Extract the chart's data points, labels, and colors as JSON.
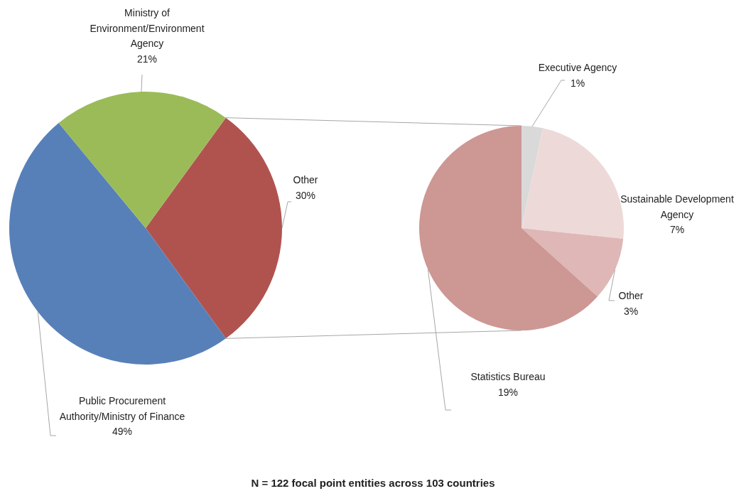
{
  "chart_data": [
    {
      "type": "pie",
      "categories": [
        "Other",
        "Public Procurement Authority/Ministry of Finance",
        "Ministry of Environment/Environment Agency"
      ],
      "values": [
        30,
        49,
        21
      ],
      "colors": [
        "#b0534f",
        "#5880b8",
        "#9bbb59"
      ],
      "value_labels": [
        "30%",
        "49%",
        "21%"
      ],
      "annotations": [
        "N = 122 focal point entities across 103 countries"
      ]
    },
    {
      "type": "pie",
      "categories": [
        "Executive Agency",
        "Sustainable Development Agency",
        "Other",
        "Statistics Bureau"
      ],
      "values": [
        1,
        7,
        3,
        19
      ],
      "colors": [
        "#d9d9d9",
        "#eed9d9",
        "#deb7b6",
        "#cd9794"
      ],
      "value_labels": [
        "1%",
        "7%",
        "3%",
        "19%"
      ]
    }
  ]
}
